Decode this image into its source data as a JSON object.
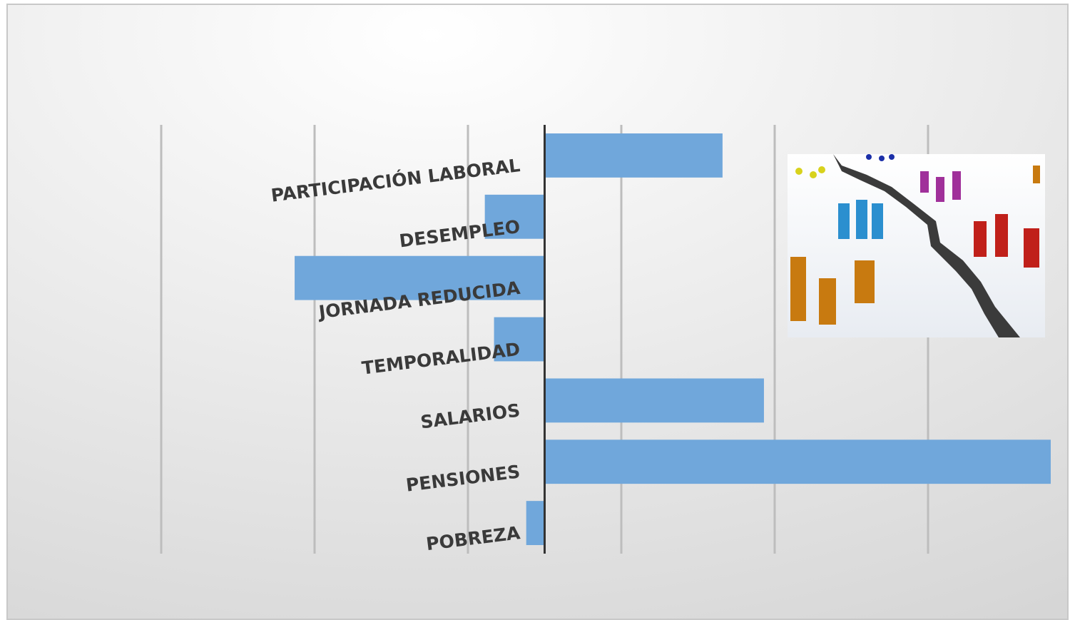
{
  "chart_data": {
    "type": "barh",
    "categories": [
      "PARTICIPACIÓN LABORAL",
      "DESEMPLEO",
      "JORNADA REDUCIDA",
      "TEMPORALIDAD",
      "SALARIOS",
      "PENSIONES",
      "POBREZA"
    ],
    "values": [
      11.6,
      -3.9,
      -16.3,
      -3.3,
      14.3,
      33,
      -1.2
    ],
    "color": "#70a7db",
    "xlim": [
      -25,
      34
    ],
    "xticks": [
      -25,
      -15,
      -5,
      5,
      15,
      25
    ],
    "grid": true
  }
}
